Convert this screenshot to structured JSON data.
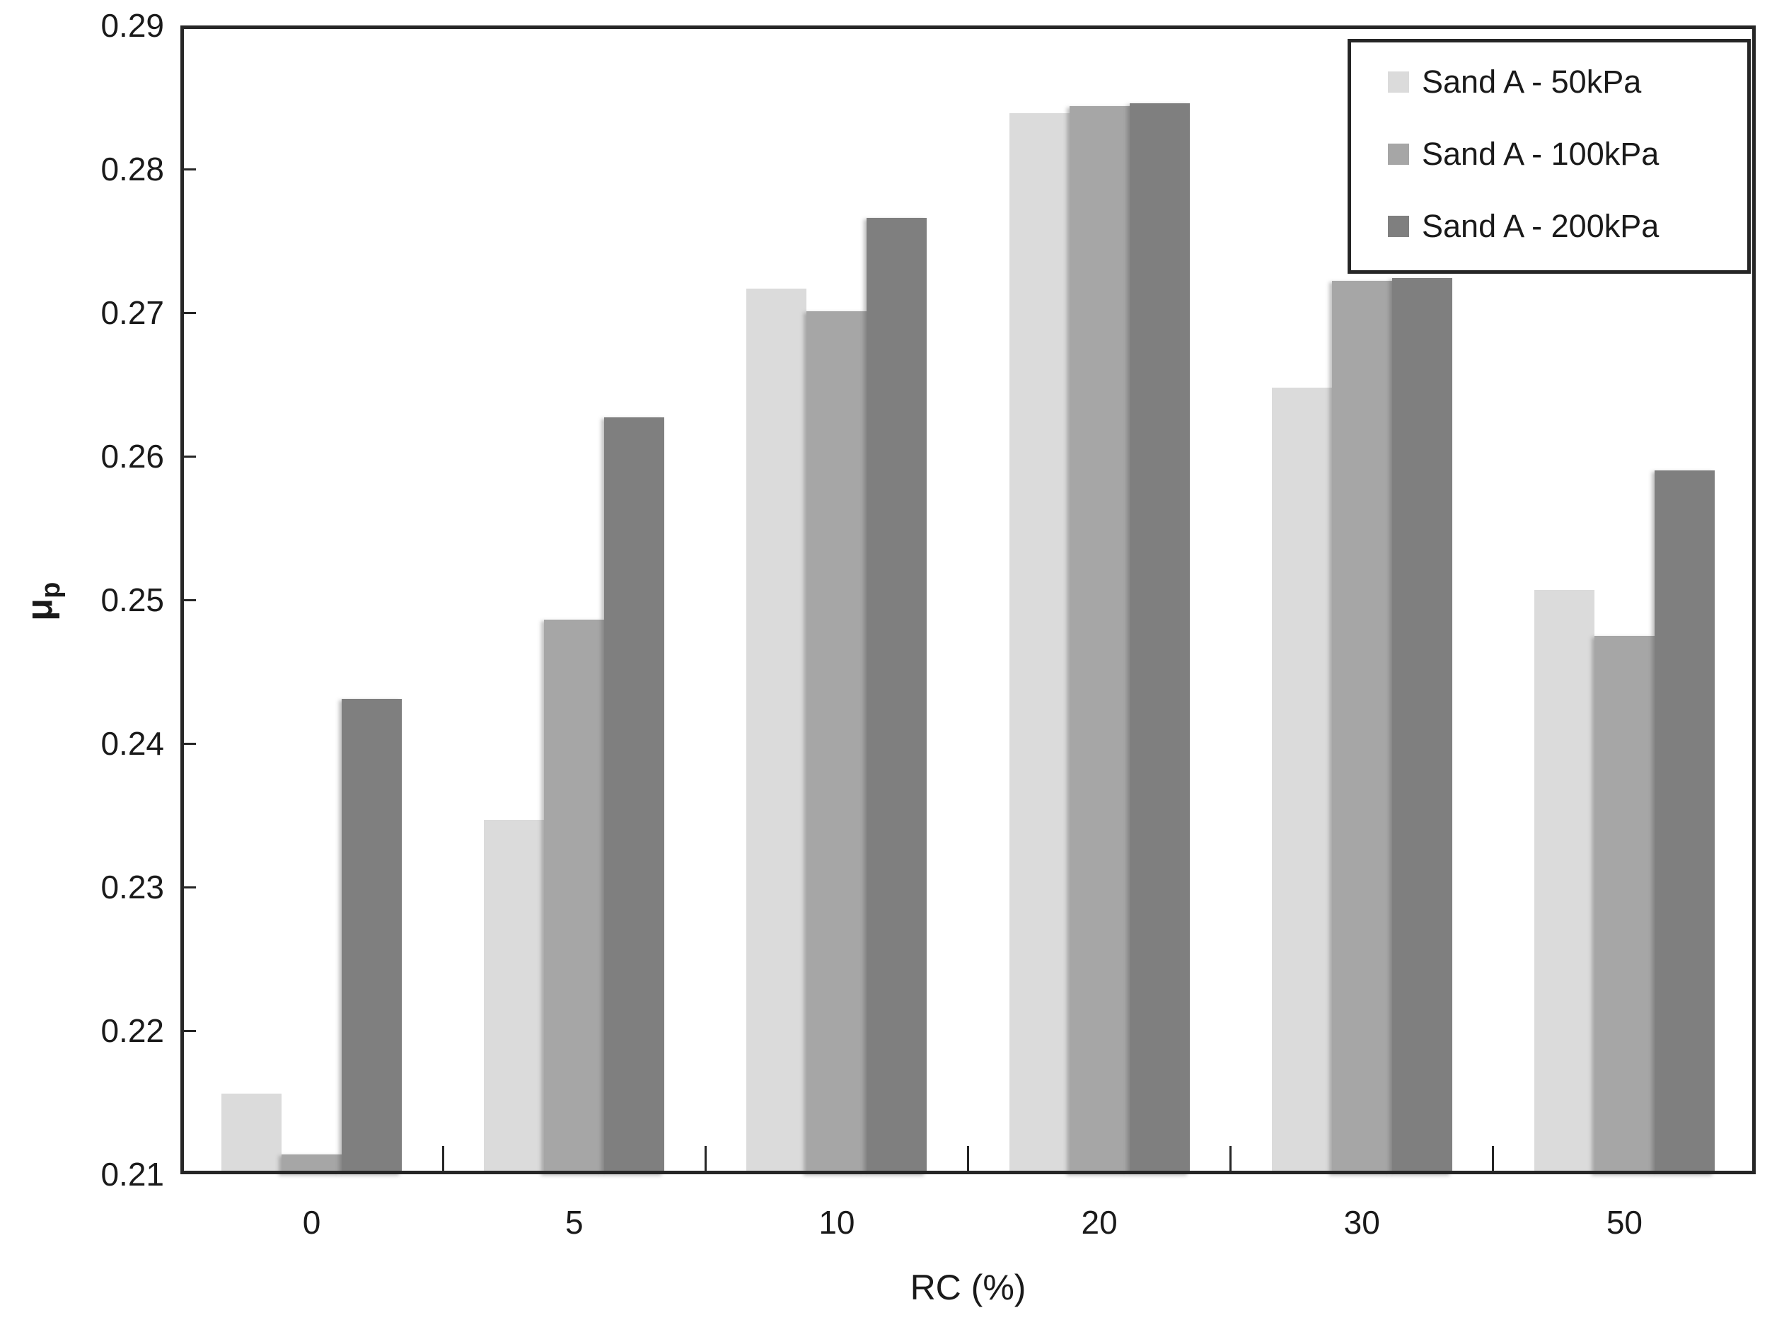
{
  "chart_data": {
    "type": "bar",
    "title": "",
    "xlabel": "RC (%)",
    "ylabel_main": "μ",
    "ylabel_sub": "p",
    "categories": [
      "0",
      "5",
      "10",
      "20",
      "30",
      "50"
    ],
    "series": [
      {
        "name": "Sand A - 50kPa",
        "color": "#dbdbdb",
        "values": [
          0.2156,
          0.2347,
          0.2717,
          0.2839,
          0.2648,
          0.2507
        ]
      },
      {
        "name": "Sand A - 100kPa",
        "color": "#a6a6a6",
        "values": [
          0.2114,
          0.2486,
          0.2701,
          0.2844,
          0.2722,
          0.2475
        ]
      },
      {
        "name": "Sand A - 200kPa",
        "color": "#7f7f7f",
        "values": [
          0.2431,
          0.2627,
          0.2766,
          0.2846,
          0.2724,
          0.259
        ]
      }
    ],
    "ylim": [
      0.21,
      0.29
    ],
    "ytick_step": 0.01,
    "ytick_decimals": 2,
    "grid": false,
    "legend_position": "top-right",
    "axis_color": "#262626",
    "text_color": "#1a1a1a",
    "background_color": "#ffffff"
  }
}
